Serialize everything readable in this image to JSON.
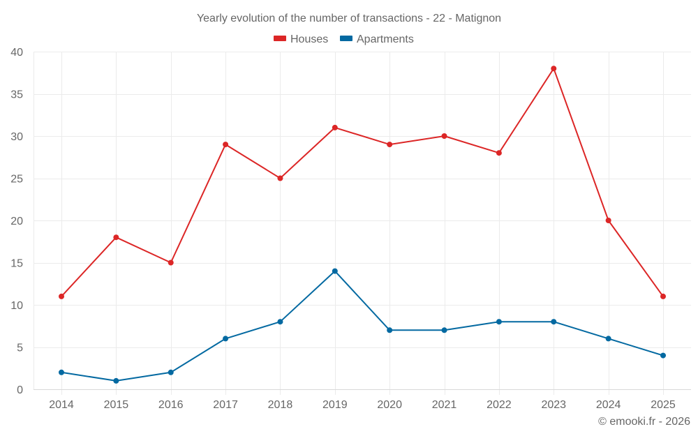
{
  "chart_data": {
    "type": "line",
    "title": "Yearly evolution of the number of transactions - 22 - Matignon",
    "xlabel": "",
    "ylabel": "",
    "x": [
      "2014",
      "2015",
      "2016",
      "2017",
      "2018",
      "2019",
      "2020",
      "2021",
      "2022",
      "2023",
      "2024",
      "2025"
    ],
    "ylim": [
      0,
      40
    ],
    "yticks": [
      "0",
      "5",
      "10",
      "15",
      "20",
      "25",
      "30",
      "35",
      "40"
    ],
    "grid": true,
    "legend_position": "top-center",
    "series": [
      {
        "name": "Houses",
        "color": "#dc2626",
        "values": [
          11,
          18,
          15,
          29,
          25,
          31,
          29,
          30,
          28,
          38,
          20,
          11
        ]
      },
      {
        "name": "Apartments",
        "color": "#0369a1",
        "values": [
          2,
          1,
          2,
          6,
          8,
          14,
          7,
          7,
          8,
          8,
          6,
          4
        ]
      }
    ],
    "credit": "© emooki.fr - 2026"
  }
}
